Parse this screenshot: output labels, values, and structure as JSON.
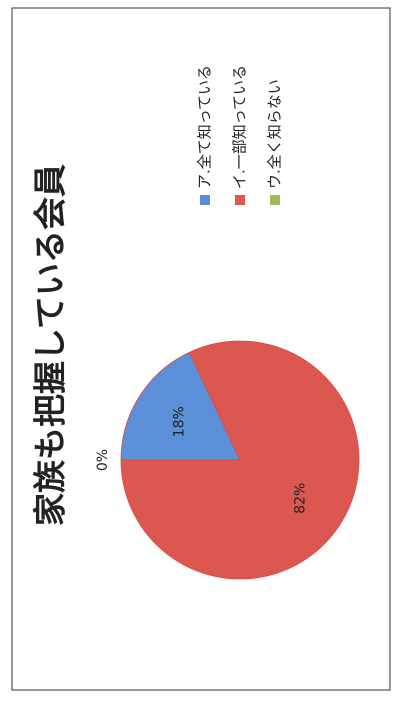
{
  "chart_data": {
    "type": "pie",
    "title": "家族も把握している会員",
    "categories": [
      "ア.全て知っている",
      "イ.一部知っている",
      "ウ.全く知らない"
    ],
    "values": [
      18,
      82,
      0
    ],
    "value_labels": [
      "18%",
      "82%",
      "0%"
    ],
    "colors": [
      "#5b8fd8",
      "#dc5750",
      "#9bbb59"
    ],
    "legend": "right"
  }
}
